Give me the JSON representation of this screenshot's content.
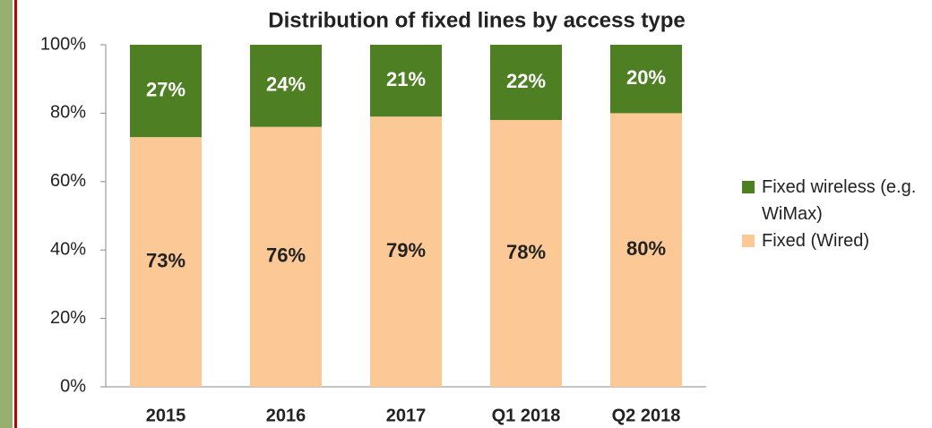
{
  "chart_data": {
    "type": "stacked_bar",
    "title": "Distribution of fixed lines by access type",
    "categories": [
      "2015",
      "2016",
      "2017",
      "Q1 2018",
      "Q2 2018"
    ],
    "series": [
      {
        "name": "Fixed (Wired)",
        "color": "#fcc996",
        "values": [
          73,
          76,
          79,
          78,
          80
        ],
        "value_labels": [
          "73%",
          "76%",
          "79%",
          "78%",
          "80%"
        ]
      },
      {
        "name": "Fixed wireless (e.g. WiMax)",
        "color": "#4e7f23",
        "values": [
          27,
          24,
          21,
          22,
          20
        ],
        "value_labels": [
          "27%",
          "24%",
          "21%",
          "22%",
          "20%"
        ]
      }
    ],
    "ylim": [
      0,
      100
    ],
    "yticks": [
      {
        "value": 0,
        "label": "0%"
      },
      {
        "value": 20,
        "label": "20%"
      },
      {
        "value": 40,
        "label": "40%"
      },
      {
        "value": 60,
        "label": "60%"
      },
      {
        "value": 80,
        "label": "80%"
      },
      {
        "value": 100,
        "label": "100%"
      }
    ],
    "legend": "right"
  }
}
